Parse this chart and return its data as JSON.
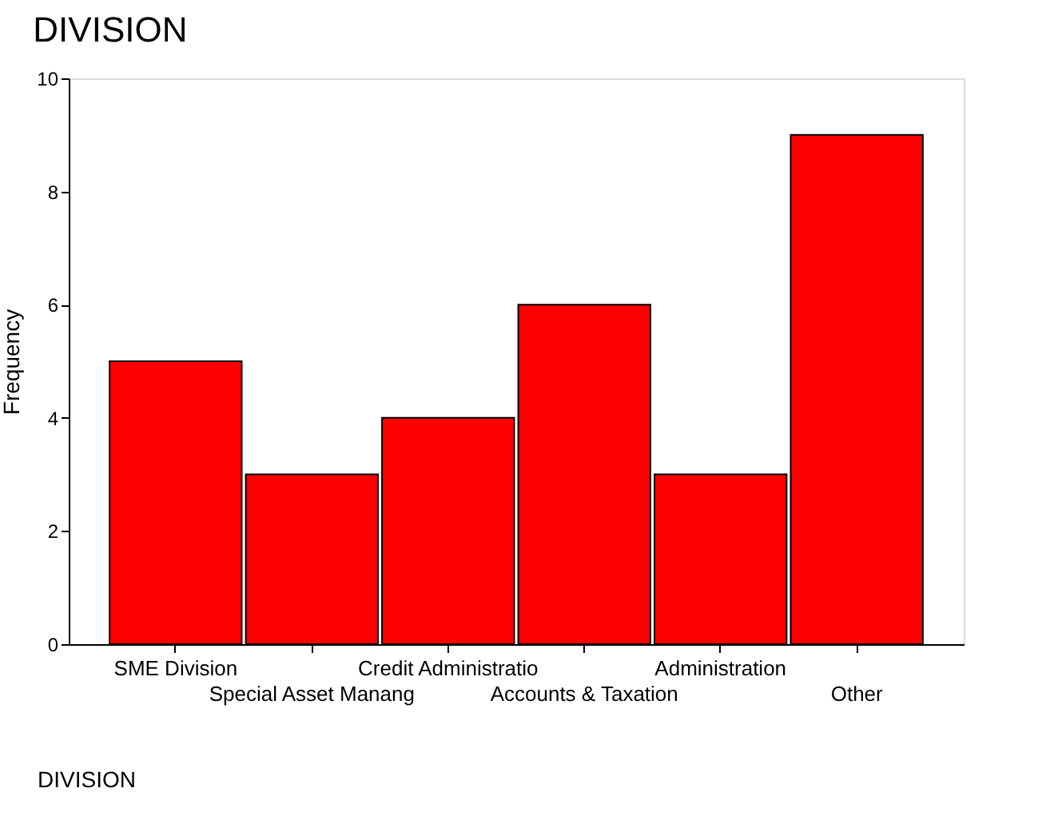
{
  "chart_data": {
    "type": "bar",
    "title": "DIVISION",
    "xlabel": "DIVISION",
    "ylabel": "Frequency",
    "categories": [
      "SME Division",
      "Special Asset Manang",
      "Credit Administratio",
      "Accounts & Taxation",
      "Administration",
      "Other"
    ],
    "values": [
      5,
      3,
      4,
      6,
      3,
      9
    ],
    "color": "#ff0000",
    "ylim": [
      0,
      10
    ],
    "yticks": [
      0,
      2,
      4,
      6,
      8,
      10
    ],
    "grid": false
  }
}
